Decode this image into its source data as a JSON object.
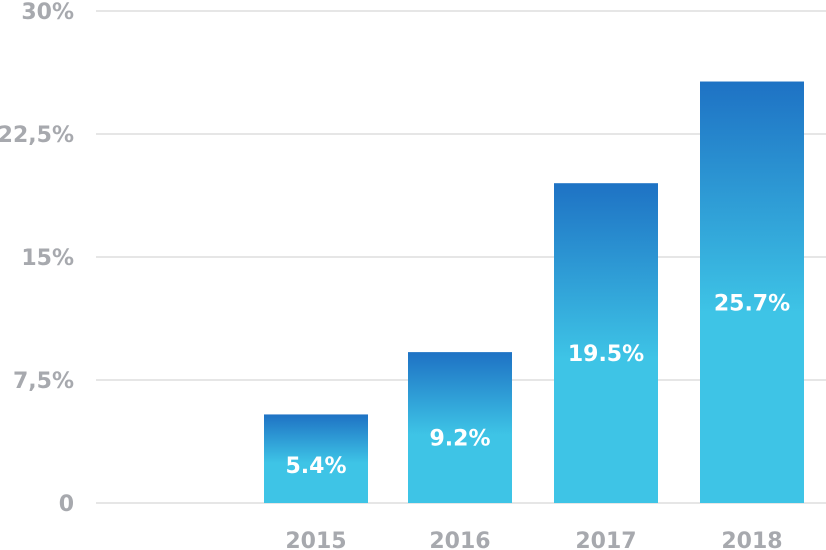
{
  "chart_data": {
    "type": "bar",
    "categories": [
      "2015",
      "2016",
      "2017",
      "2018"
    ],
    "values": [
      5.4,
      9.2,
      19.5,
      25.7
    ],
    "data_labels": [
      "5.4%",
      "9.2%",
      "19.5%",
      "25.7%"
    ],
    "ylim": [
      0,
      30
    ],
    "yticks": [
      0,
      7.5,
      15,
      22.5,
      30
    ],
    "ytick_labels": [
      "0",
      "7,5%",
      "15%",
      "22,5%",
      "30%"
    ],
    "grid": true,
    "colors": {
      "bar_top": "#1e72c4",
      "bar_bottom": "#3ec4e6",
      "grid": "#e6e6e6",
      "axis_text": "#a7a9ae",
      "label_text": "#ffffff"
    }
  }
}
